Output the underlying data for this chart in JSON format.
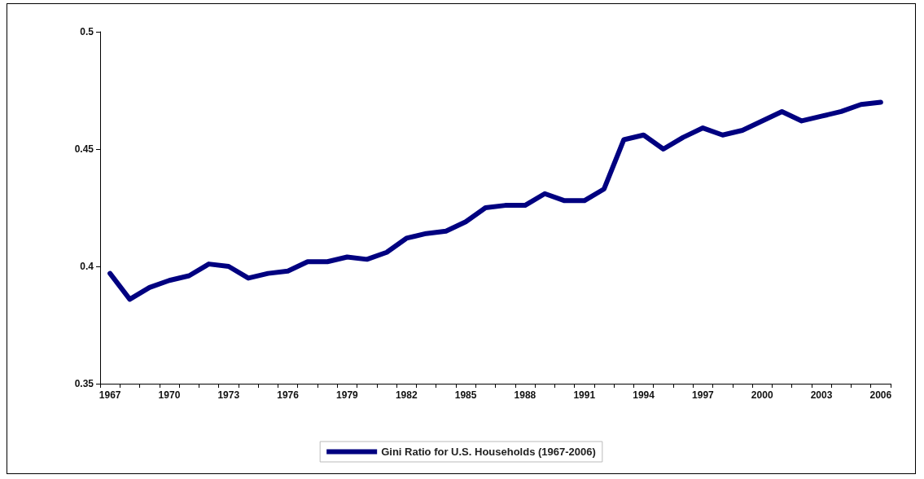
{
  "chart_data": {
    "type": "line",
    "categories": [
      "1967",
      null,
      null,
      "1970",
      null,
      null,
      "1973",
      null,
      null,
      "1976",
      null,
      null,
      "1979",
      null,
      null,
      "1982",
      null,
      null,
      "1985",
      null,
      null,
      "1988",
      null,
      null,
      "1991",
      null,
      null,
      "1994",
      null,
      null,
      "1997",
      null,
      null,
      "2000",
      null,
      null,
      "2003",
      null,
      null,
      "2006"
    ],
    "series": [
      {
        "name": "Gini Ratio for U.S. Households (1967-2006)",
        "color": "#000080",
        "values": [
          0.397,
          0.386,
          0.391,
          0.394,
          0.396,
          0.401,
          0.4,
          0.395,
          0.397,
          0.398,
          0.402,
          0.402,
          0.404,
          0.403,
          0.406,
          0.412,
          0.414,
          0.415,
          0.419,
          0.425,
          0.426,
          0.426,
          0.431,
          0.428,
          0.428,
          0.433,
          0.454,
          0.456,
          0.45,
          0.455,
          0.459,
          0.456,
          0.458,
          0.462,
          0.466,
          0.462,
          0.464,
          0.466,
          0.469,
          0.47
        ]
      }
    ],
    "ylim": [
      0.35,
      0.5
    ],
    "yticks": [
      0.35,
      0.4,
      0.45,
      0.5
    ],
    "grid": false,
    "legend": "bottom",
    "marker": "none",
    "line_style": "solid"
  }
}
